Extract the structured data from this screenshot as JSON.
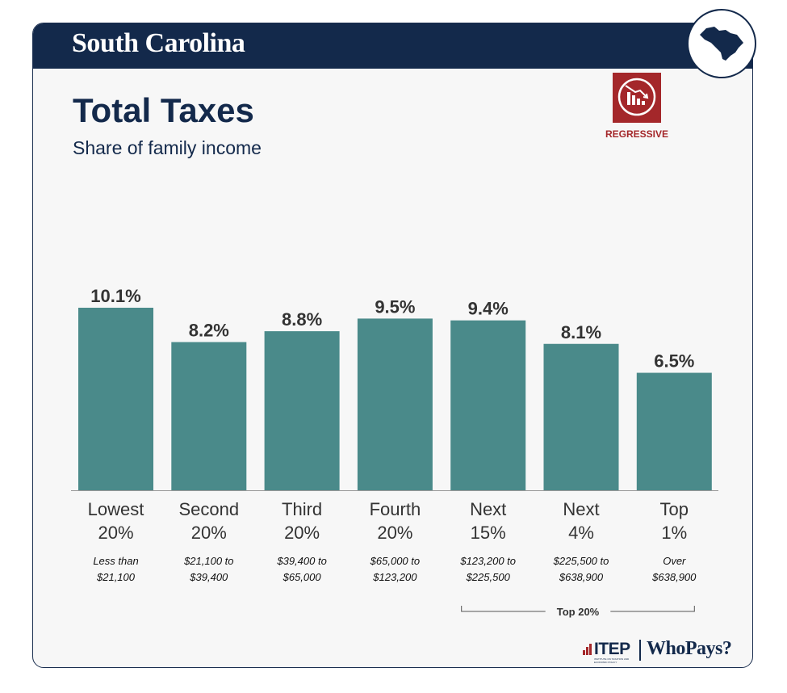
{
  "header": {
    "state_name": "South Carolina",
    "state_icon": "south-carolina-map-icon"
  },
  "title": "Total Taxes",
  "subtitle": "Share of family income",
  "badge": {
    "label": "REGRESSIVE",
    "icon": "declining-bars-icon",
    "color": "#a4272a"
  },
  "colors": {
    "bar": "#4a8a8a",
    "navy": "#13294b",
    "red": "#a4272a"
  },
  "chart_data": {
    "type": "bar",
    "title": "Total Taxes",
    "subtitle": "Share of family income",
    "categories": [
      [
        "Lowest",
        "20%"
      ],
      [
        "Second",
        "20%"
      ],
      [
        "Third",
        "20%"
      ],
      [
        "Fourth",
        "20%"
      ],
      [
        "Next",
        "15%"
      ],
      [
        "Next",
        "4%"
      ],
      [
        "Top",
        "1%"
      ]
    ],
    "income_ranges": [
      [
        "Less than",
        "$21,100"
      ],
      [
        "$21,100 to",
        "$39,400"
      ],
      [
        "$39,400 to",
        "$65,000"
      ],
      [
        "$65,000 to",
        "$123,200"
      ],
      [
        "$123,200 to",
        "$225,500"
      ],
      [
        "$225,500 to",
        "$638,900"
      ],
      [
        "Over",
        "$638,900"
      ]
    ],
    "values": [
      10.1,
      8.2,
      8.8,
      9.5,
      9.4,
      8.1,
      6.5
    ],
    "value_labels": [
      "10.1%",
      "8.2%",
      "8.8%",
      "9.5%",
      "9.4%",
      "8.1%",
      "6.5%"
    ],
    "ylim": [
      0,
      10.1
    ],
    "grid": false,
    "bracket": {
      "label": "Top 20%",
      "from_index": 4,
      "to_index": 6
    }
  },
  "footer": {
    "itep": "ITEP",
    "itep_sub": "INSTITUTE ON TAXATION AND ECONOMIC POLICY",
    "whopays": "WhoPays?"
  }
}
